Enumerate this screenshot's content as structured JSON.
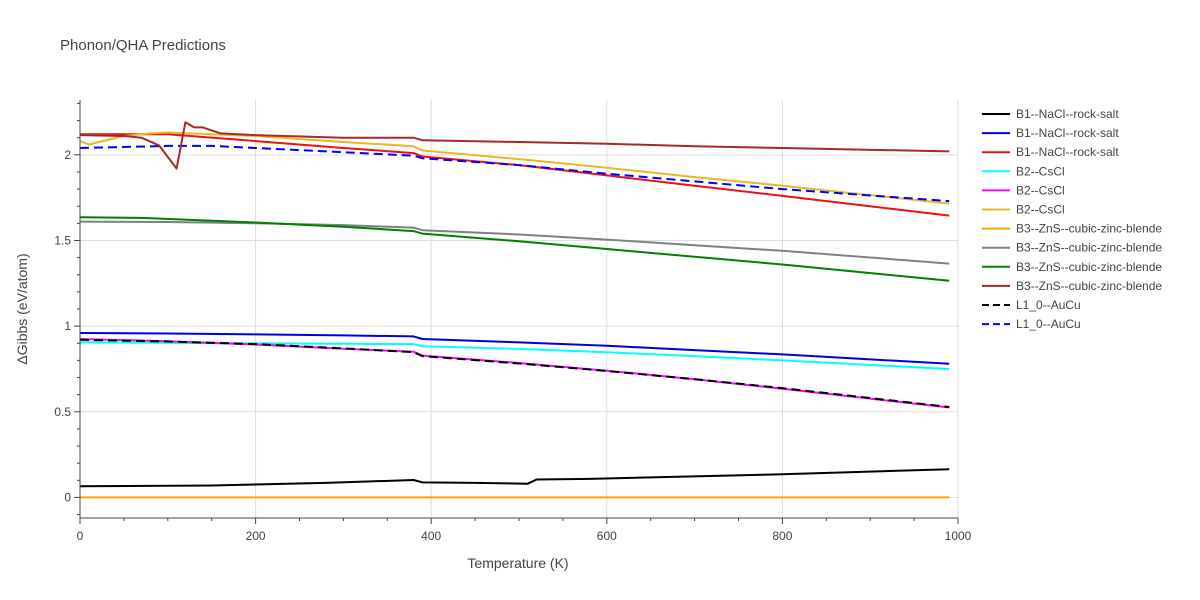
{
  "chart_data": {
    "type": "line",
    "title": "Phonon/QHA Predictions",
    "xlabel": "Temperature (K)",
    "ylabel": "ΔGibbs (eV/atom)",
    "xlim": [
      0,
      1000
    ],
    "ylim": [
      -0.12,
      2.32
    ],
    "xticks": [
      0,
      200,
      400,
      600,
      800,
      1000
    ],
    "xtick_labels": [
      "0",
      "200",
      "400",
      "600",
      "800",
      "1000"
    ],
    "yticks": [
      0,
      0.5,
      1,
      1.5,
      2
    ],
    "ytick_labels": [
      "0",
      "0.5",
      "1",
      "1.5",
      "2"
    ],
    "grid": true,
    "legend_position": "right",
    "series": [
      {
        "name": "B1--NaCl--rock-salt",
        "color": "#000000",
        "dash": "solid",
        "x": [
          0,
          150,
          280,
          380,
          390,
          450,
          510,
          520,
          580,
          800,
          990
        ],
        "y": [
          0.065,
          0.07,
          0.085,
          0.102,
          0.088,
          0.085,
          0.08,
          0.105,
          0.108,
          0.135,
          0.165
        ]
      },
      {
        "name": "B1--NaCl--rock-salt",
        "color": "#0000dd",
        "dash": "solid",
        "x": [
          0,
          100,
          200,
          300,
          380,
          390,
          500,
          600,
          700,
          800,
          990
        ],
        "y": [
          0.96,
          0.957,
          0.952,
          0.946,
          0.94,
          0.925,
          0.905,
          0.885,
          0.86,
          0.835,
          0.78
        ]
      },
      {
        "name": "B1--NaCl--rock-salt",
        "color": "#ee1111",
        "dash": "solid",
        "x": [
          0,
          100,
          200,
          300,
          380,
          390,
          500,
          600,
          700,
          800,
          990
        ],
        "y": [
          2.12,
          2.12,
          2.08,
          2.04,
          2.01,
          1.99,
          1.94,
          1.88,
          1.82,
          1.76,
          1.645
        ]
      },
      {
        "name": "B2--CsCl",
        "color": "#00ffff",
        "dash": "solid",
        "x": [
          0,
          100,
          200,
          300,
          380,
          390,
          500,
          600,
          700,
          800,
          990
        ],
        "y": [
          0.905,
          0.902,
          0.899,
          0.897,
          0.895,
          0.882,
          0.867,
          0.848,
          0.825,
          0.8,
          0.75
        ]
      },
      {
        "name": "B2--CsCl",
        "color": "#ff00ff",
        "dash": "solid",
        "x": [
          0,
          100,
          200,
          300,
          380,
          390,
          500,
          600,
          700,
          800,
          990
        ],
        "y": [
          0.925,
          0.912,
          0.893,
          0.868,
          0.85,
          0.828,
          0.785,
          0.74,
          0.69,
          0.635,
          0.525
        ]
      },
      {
        "name": "B2--CsCl",
        "color": "#e8b820",
        "dash": "solid",
        "x": [
          0,
          10,
          50,
          80,
          100,
          200,
          300,
          380,
          390,
          500,
          600,
          700,
          800,
          990
        ],
        "y": [
          2.08,
          2.06,
          2.11,
          2.125,
          2.13,
          2.11,
          2.075,
          2.05,
          2.025,
          1.975,
          1.925,
          1.87,
          1.82,
          1.715
        ]
      },
      {
        "name": "B3--ZnS--cubic-zinc-blende",
        "color": "#ffa500",
        "dash": "solid",
        "x": [
          0,
          990
        ],
        "y": [
          0,
          0
        ]
      },
      {
        "name": "B3--ZnS--cubic-zinc-blende",
        "color": "#808080",
        "dash": "solid",
        "x": [
          0,
          100,
          200,
          300,
          380,
          390,
          500,
          600,
          700,
          800,
          990
        ],
        "y": [
          1.61,
          1.608,
          1.6,
          1.59,
          1.575,
          1.56,
          1.535,
          1.505,
          1.472,
          1.44,
          1.365
        ]
      },
      {
        "name": "B3--ZnS--cubic-zinc-blende",
        "color": "#008000",
        "dash": "solid",
        "x": [
          0,
          70,
          200,
          300,
          380,
          390,
          500,
          600,
          700,
          800,
          990
        ],
        "y": [
          1.635,
          1.632,
          1.605,
          1.58,
          1.555,
          1.54,
          1.495,
          1.45,
          1.405,
          1.36,
          1.265
        ]
      },
      {
        "name": "B3--ZnS--cubic-zinc-blende",
        "color": "#a52a2a",
        "dash": "solid",
        "x": [
          0,
          50,
          70,
          90,
          110,
          120,
          130,
          140,
          160,
          200,
          300,
          380,
          390,
          500,
          600,
          700,
          800,
          990
        ],
        "y": [
          2.115,
          2.11,
          2.1,
          2.055,
          1.92,
          2.19,
          2.16,
          2.16,
          2.125,
          2.115,
          2.1,
          2.1,
          2.085,
          2.075,
          2.065,
          2.05,
          2.04,
          2.02
        ]
      },
      {
        "name": "L1_0--AuCu",
        "color": "#000000",
        "dash": "dash",
        "x": [
          0,
          100,
          200,
          300,
          380,
          390,
          500,
          600,
          700,
          800,
          990
        ],
        "y": [
          0.92,
          0.91,
          0.895,
          0.87,
          0.848,
          0.825,
          0.782,
          0.738,
          0.69,
          0.638,
          0.528
        ]
      },
      {
        "name": "L1_0--AuCu",
        "color": "#0000ff",
        "dash": "dash",
        "x": [
          0,
          100,
          150,
          200,
          300,
          380,
          390,
          500,
          600,
          700,
          800,
          990
        ],
        "y": [
          2.04,
          2.052,
          2.052,
          2.04,
          2.015,
          1.995,
          1.98,
          1.94,
          1.89,
          1.845,
          1.8,
          1.73
        ]
      }
    ]
  }
}
